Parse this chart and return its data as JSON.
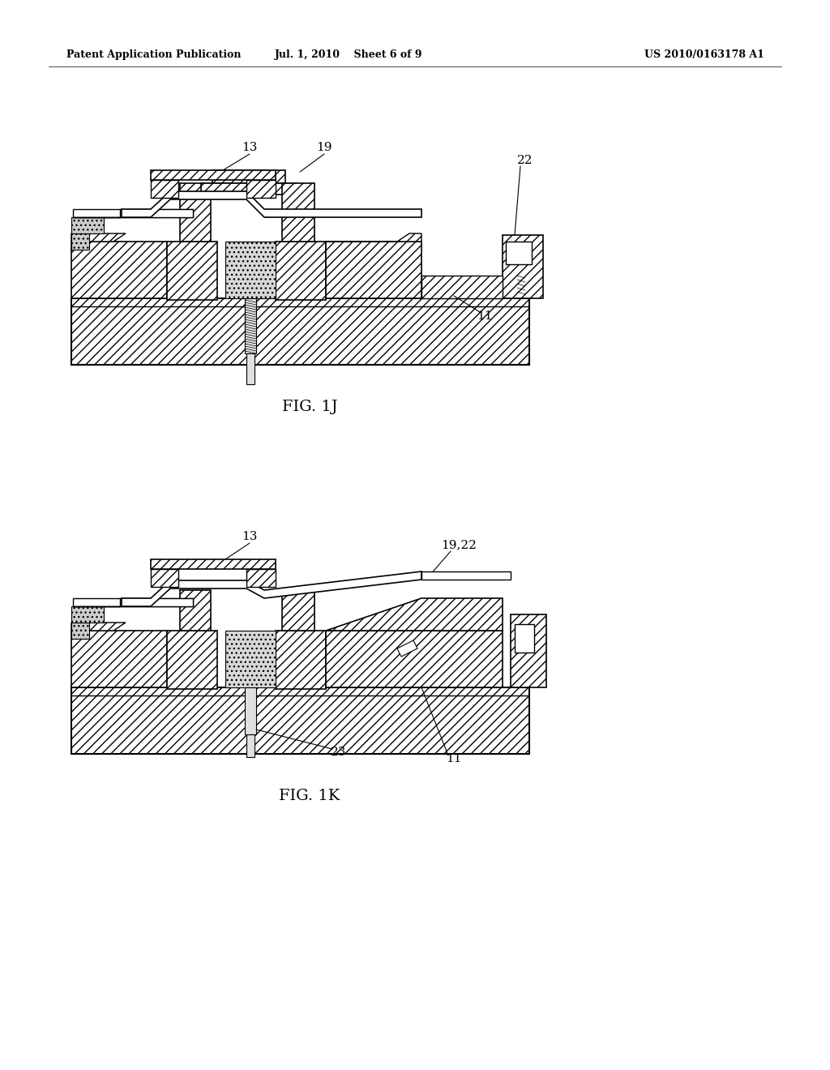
{
  "background_color": "#ffffff",
  "line_color": "#1a1a1a",
  "header_left": "Patent Application Publication",
  "header_mid": "Jul. 1, 2010    Sheet 6 of 9",
  "header_right": "US 2010/0163178 A1",
  "fig1j_caption": "FIG. 1J",
  "fig1k_caption": "FIG. 1K",
  "label_fontsize": 11,
  "caption_fontsize": 14,
  "header_fontsize": 9
}
